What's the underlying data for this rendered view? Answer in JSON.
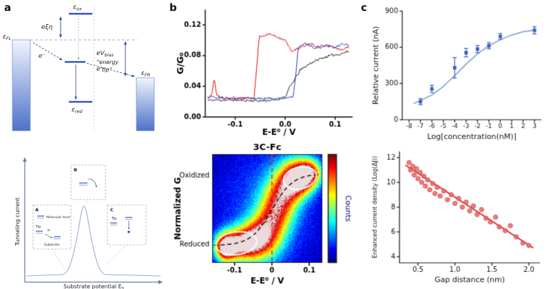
{
  "panels": {
    "a": {
      "label": "a"
    },
    "b": {
      "label": "b"
    },
    "c": {
      "label": "c"
    }
  },
  "panel_a": {
    "energy_diagram": {
      "eps_fl": {
        "base": "ε",
        "sub": "FL"
      },
      "eps_ox": {
        "base": "ε",
        "sub": "ox"
      },
      "eps_fr": {
        "base": "ε",
        "sub": "FR"
      },
      "eps_red": {
        "base": "ε",
        "sub": "red"
      },
      "exi_eta": "eξη",
      "electron": "e⁻",
      "ev_bias": {
        "base": "eV",
        "sub": "bias"
      },
      "energy_tip_1": "“energy",
      "energy_tip_2": "tip”"
    },
    "schematic": {
      "ylabel": "Tunneling current",
      "xlabel": {
        "base": "Substrate potential E",
        "sub": "s"
      },
      "inset_a": "A",
      "inset_b": "B",
      "inset_c": "C",
      "legend": {
        "molecular_level": "Molecular level",
        "tip": "Tip",
        "electron": "e⁻",
        "substrate": "Substrate",
        "tip_c": "Tip"
      }
    }
  },
  "chart_data": [
    {
      "id": "conductance_traces",
      "type": "line",
      "xlabel": "E-E⁰ / V",
      "ylabel": "G/G₀",
      "xlim": [
        -0.16,
        0.135
      ],
      "ylim": [
        0,
        0.14
      ],
      "xticks": [
        {
          "v": -0.1,
          "label": "-0.1"
        },
        {
          "v": 0.0,
          "label": "0.0"
        },
        {
          "v": 0.1,
          "label": "0.1"
        }
      ],
      "yticks": [
        {
          "v": 0.0,
          "label": "0.00"
        },
        {
          "v": 0.04,
          "label": "0.04"
        },
        {
          "v": 0.08,
          "label": "0.08"
        },
        {
          "v": 0.12,
          "label": "0.12"
        }
      ],
      "series": [
        {
          "name": "black-trace",
          "color": "#1a1a1a",
          "points": [
            [
              -0.155,
              0.022
            ],
            [
              -0.1,
              0.022
            ],
            [
              -0.05,
              0.021
            ],
            [
              -0.02,
              0.022
            ],
            [
              0.0,
              0.026
            ],
            [
              0.01,
              0.04
            ],
            [
              0.02,
              0.05
            ],
            [
              0.03,
              0.061
            ],
            [
              0.05,
              0.07
            ],
            [
              0.07,
              0.076
            ],
            [
              0.09,
              0.08
            ],
            [
              0.11,
              0.082
            ],
            [
              0.128,
              0.086
            ]
          ]
        },
        {
          "name": "red-trace",
          "color": "#e8000b",
          "points": [
            [
              -0.155,
              0.024
            ],
            [
              -0.147,
              0.03
            ],
            [
              -0.142,
              0.05
            ],
            [
              -0.137,
              0.028
            ],
            [
              -0.12,
              0.024
            ],
            [
              -0.09,
              0.024
            ],
            [
              -0.062,
              0.025
            ],
            [
              -0.057,
              0.065
            ],
            [
              -0.052,
              0.105
            ],
            [
              -0.03,
              0.108
            ],
            [
              -0.01,
              0.103
            ],
            [
              0.0,
              0.1
            ],
            [
              0.012,
              0.086
            ],
            [
              0.03,
              0.09
            ],
            [
              0.05,
              0.096
            ],
            [
              0.07,
              0.09
            ],
            [
              0.09,
              0.093
            ],
            [
              0.11,
              0.088
            ],
            [
              0.128,
              0.091
            ]
          ]
        },
        {
          "name": "blue-trace",
          "color": "#2038c8",
          "points": [
            [
              -0.155,
              0.026
            ],
            [
              -0.1,
              0.025
            ],
            [
              -0.05,
              0.024
            ],
            [
              0.0,
              0.025
            ],
            [
              0.016,
              0.027
            ],
            [
              0.021,
              0.055
            ],
            [
              0.026,
              0.09
            ],
            [
              0.04,
              0.096
            ],
            [
              0.06,
              0.09
            ],
            [
              0.08,
              0.094
            ],
            [
              0.1,
              0.09
            ],
            [
              0.115,
              0.096
            ],
            [
              0.128,
              0.093
            ]
          ]
        }
      ]
    },
    {
      "id": "conductance_heatmap",
      "type": "heatmap",
      "title": "3C-Fc",
      "xlabel": "E-E⁰ / V",
      "ylabel": "Normalized G",
      "colorbar_label": "Counts",
      "xlim": [
        -0.16,
        0.135
      ],
      "xticks": [
        {
          "v": -0.1,
          "label": "-0.1"
        },
        {
          "v": 0,
          "label": "0"
        },
        {
          "v": 0.1,
          "label": "0.1"
        }
      ],
      "state_labels": [
        {
          "v": 0.8,
          "label": "Oxidized"
        },
        {
          "v": 0.17,
          "label": "Reduced"
        }
      ],
      "vline_x": 0,
      "sigmoid": {
        "y0": 0.16,
        "amp": 0.66,
        "x0": 0.0,
        "k": 0.028
      },
      "blobs": [
        {
          "x": -0.125,
          "y": 0.14,
          "sx": 0.02,
          "sy": 0.09,
          "a": 1.05
        },
        {
          "x": -0.08,
          "y": 0.17,
          "sx": 0.03,
          "sy": 0.11,
          "a": 0.8
        },
        {
          "x": -0.035,
          "y": 0.22,
          "sx": 0.03,
          "sy": 0.14,
          "a": 0.6
        },
        {
          "x": 0.0,
          "y": 0.38,
          "sx": 0.03,
          "sy": 0.2,
          "a": 0.5
        },
        {
          "x": 0.03,
          "y": 0.62,
          "sx": 0.03,
          "sy": 0.18,
          "a": 0.55
        },
        {
          "x": 0.07,
          "y": 0.78,
          "sx": 0.028,
          "sy": 0.12,
          "a": 0.95
        },
        {
          "x": 0.105,
          "y": 0.83,
          "sx": 0.022,
          "sy": 0.09,
          "a": 0.65
        },
        {
          "x": -0.01,
          "y": 0.5,
          "sx": 0.1,
          "sy": 0.45,
          "a": 0.2
        }
      ],
      "ellipses": [
        {
          "cx": -0.095,
          "cy": 0.18,
          "rx": 0.055,
          "ry": 0.105,
          "rot": -8
        },
        {
          "cx": 0.075,
          "cy": 0.78,
          "rx": 0.045,
          "ry": 0.1,
          "rot": -14
        }
      ]
    },
    {
      "id": "concentration_response",
      "type": "scatter",
      "xlabel": "Log[concentration(nM)]",
      "ylabel": "Relative current (nA)",
      "xlim": [
        -8.6,
        3.6
      ],
      "ylim": [
        0,
        900
      ],
      "xticks": [
        {
          "v": -8,
          "label": "-8"
        },
        {
          "v": -7,
          "label": "-7"
        },
        {
          "v": -6,
          "label": "-6"
        },
        {
          "v": -5,
          "label": "-5"
        },
        {
          "v": -4,
          "label": "-4"
        },
        {
          "v": -3,
          "label": "-3"
        },
        {
          "v": -2,
          "label": "-2"
        },
        {
          "v": -1,
          "label": "-1"
        },
        {
          "v": 0,
          "label": "0"
        },
        {
          "v": 1,
          "label": "1"
        },
        {
          "v": 2,
          "label": "2"
        },
        {
          "v": 3,
          "label": "3"
        }
      ],
      "yticks": [
        {
          "v": 0,
          "label": "0"
        },
        {
          "v": 300,
          "label": "300"
        },
        {
          "v": 600,
          "label": "600"
        },
        {
          "v": 900,
          "label": "900"
        }
      ],
      "marker_color": "#3a62c0",
      "curve_color": "#88a9dd",
      "points": [
        {
          "x": -7,
          "y": 150,
          "err": 25
        },
        {
          "x": -6,
          "y": 255,
          "err": 30
        },
        {
          "x": -4,
          "y": 430,
          "err": 85
        },
        {
          "x": -3,
          "y": 555,
          "err": 35
        },
        {
          "x": -2,
          "y": 585,
          "err": 30
        },
        {
          "x": -1,
          "y": 612,
          "err": 25
        },
        {
          "x": 0,
          "y": 690,
          "err": 25
        },
        {
          "x": 3,
          "y": 740,
          "err": 30
        }
      ],
      "fit_curve": [
        [
          -7.6,
          135
        ],
        [
          -7,
          158
        ],
        [
          -6,
          205
        ],
        [
          -5,
          275
        ],
        [
          -4,
          365
        ],
        [
          -3,
          460
        ],
        [
          -2,
          545
        ],
        [
          -1,
          612
        ],
        [
          0,
          662
        ],
        [
          1,
          702
        ],
        [
          2,
          728
        ],
        [
          3,
          742
        ]
      ]
    },
    {
      "id": "gap_distance",
      "type": "scatter",
      "xlabel": "Gap distance (nm)",
      "ylabel": "Enhanced current density (Log(ΔJ))",
      "xlim": [
        0.25,
        2.15
      ],
      "ylim": [
        3.5,
        12.5
      ],
      "xticks": [
        {
          "v": 0.5,
          "label": "0.5"
        },
        {
          "v": 1.0,
          "label": "1.0"
        },
        {
          "v": 1.5,
          "label": "1.5"
        },
        {
          "v": 2.0,
          "label": "2.0"
        }
      ],
      "yticks": [
        {
          "v": 4,
          "label": "4"
        },
        {
          "v": 6,
          "label": "6"
        },
        {
          "v": 8,
          "label": "8"
        },
        {
          "v": 10,
          "label": "10"
        },
        {
          "v": 12,
          "label": "12"
        }
      ],
      "marker_color": "#e96a6a",
      "line_color": "#d43b3b",
      "points": [
        [
          0.38,
          11.6
        ],
        [
          0.4,
          11.0
        ],
        [
          0.43,
          11.3
        ],
        [
          0.45,
          10.6
        ],
        [
          0.48,
          11.1
        ],
        [
          0.5,
          10.3
        ],
        [
          0.53,
          10.8
        ],
        [
          0.55,
          10.0
        ],
        [
          0.58,
          10.5
        ],
        [
          0.6,
          9.7
        ],
        [
          0.63,
          10.2
        ],
        [
          0.66,
          9.4
        ],
        [
          0.7,
          9.9
        ],
        [
          0.73,
          9.1
        ],
        [
          0.76,
          9.6
        ],
        [
          0.8,
          8.9
        ],
        [
          0.85,
          9.3
        ],
        [
          0.9,
          8.6
        ],
        [
          0.95,
          9.0
        ],
        [
          1.0,
          8.3
        ],
        [
          1.05,
          8.7
        ],
        [
          1.1,
          8.0
        ],
        [
          1.15,
          8.4
        ],
        [
          1.2,
          7.7
        ],
        [
          1.25,
          8.1
        ],
        [
          1.3,
          7.4
        ],
        [
          1.36,
          7.8
        ],
        [
          1.42,
          7.1
        ],
        [
          1.48,
          6.8
        ],
        [
          1.55,
          7.2
        ],
        [
          1.6,
          6.4
        ],
        [
          1.68,
          6.1
        ],
        [
          1.75,
          6.5
        ],
        [
          1.83,
          5.6
        ],
        [
          1.92,
          5.1
        ],
        [
          2.0,
          4.9
        ]
      ],
      "fit_line": {
        "x1": 0.33,
        "y1": 11.4,
        "x2": 2.06,
        "y2": 4.7
      }
    }
  ]
}
